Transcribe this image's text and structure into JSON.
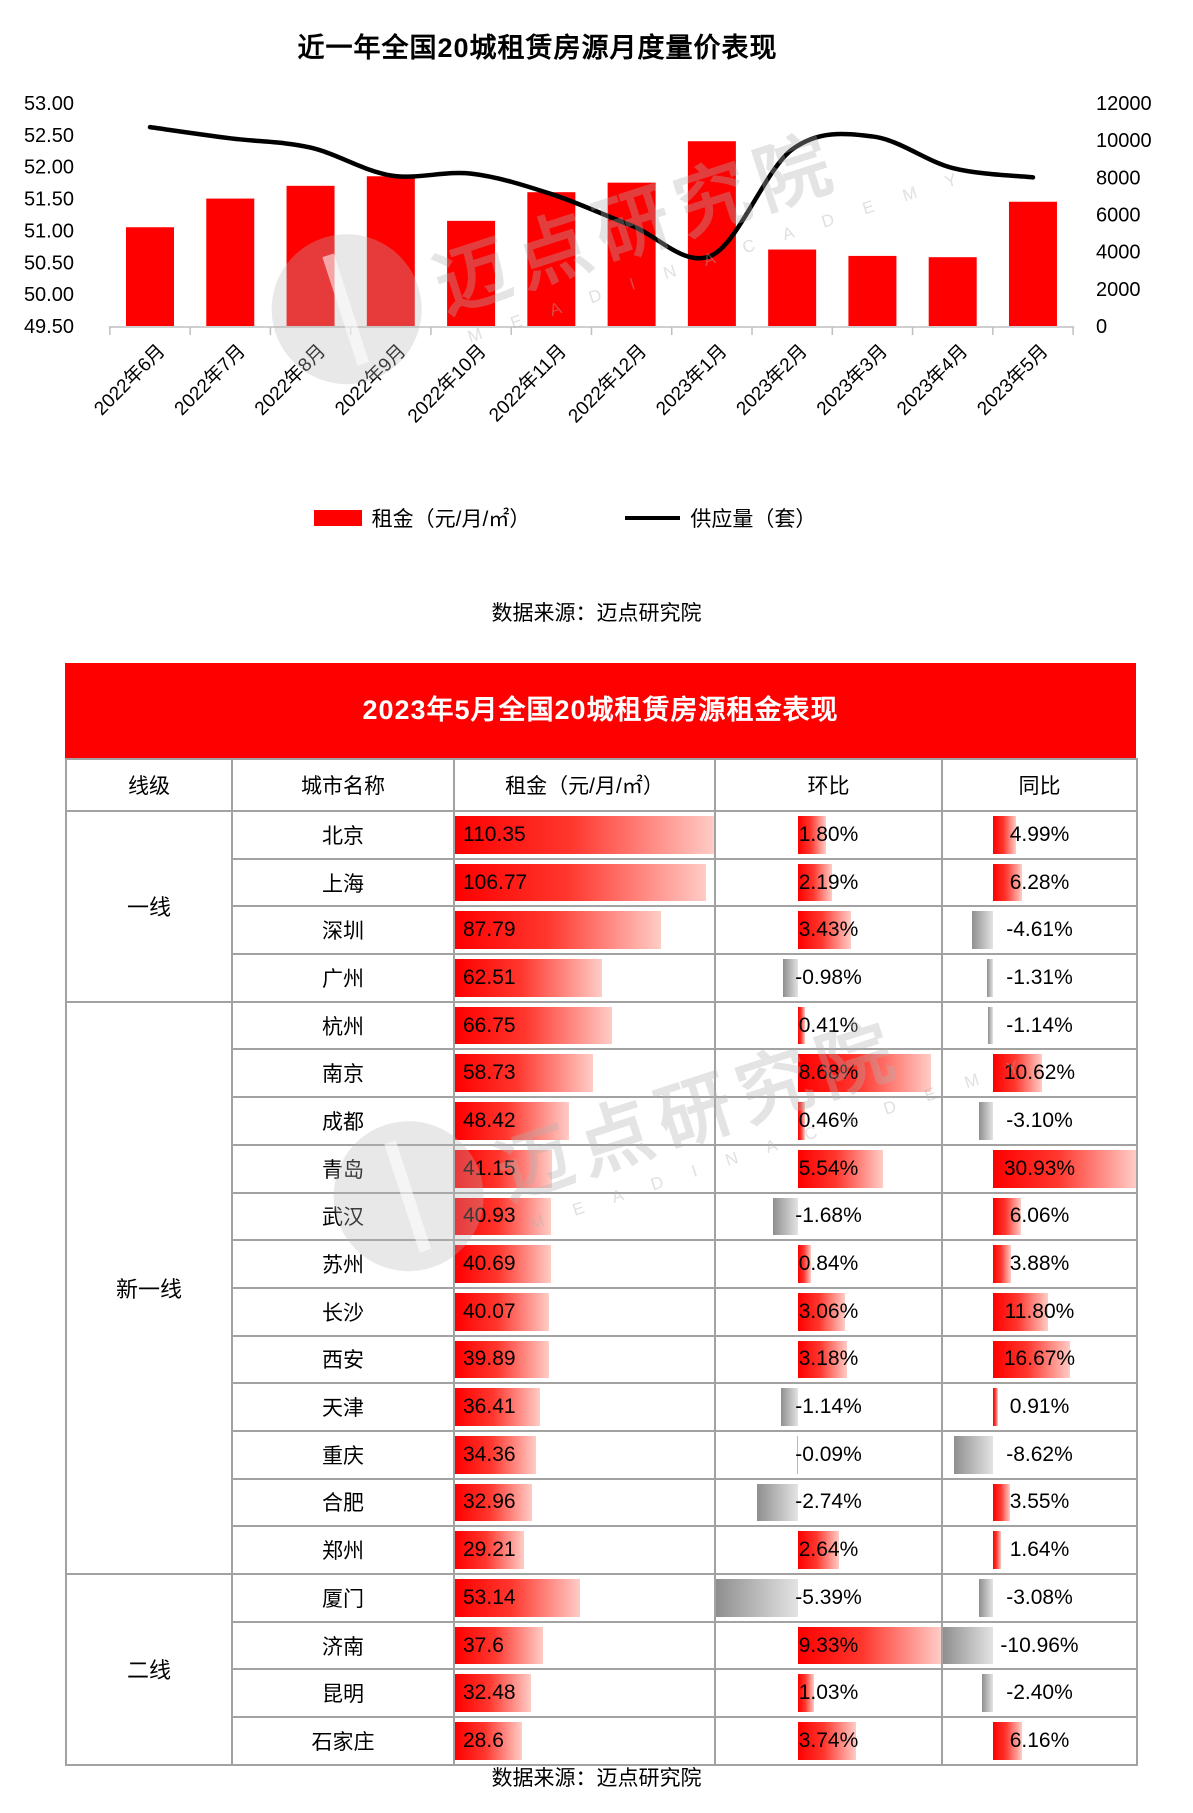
{
  "chart": {
    "title": "近一年全国20城租赁房源月度量价表现",
    "legend": [
      {
        "label": "租金（元/月/㎡）",
        "type": "bar",
        "color": "#fe0000"
      },
      {
        "label": "供应量（套）",
        "type": "line",
        "color": "#000000"
      }
    ],
    "source_note": "数据来源：迈点研究院"
  },
  "chart_data": {
    "type": "bar+line",
    "title": "近一年全国20城租赁房源月度量价表现",
    "categories": [
      "2022年6月",
      "2022年7月",
      "2022年8月",
      "2022年9月",
      "2022年10月",
      "2022年11月",
      "2022年12月",
      "2023年1月",
      "2023年2月",
      "2023年3月",
      "2023年4月",
      "2023年5月"
    ],
    "series": [
      {
        "name": "租金（元/月/㎡）",
        "type": "bar",
        "axis": "left",
        "color": "#fe0000",
        "values": [
          51.05,
          51.5,
          51.7,
          51.85,
          51.15,
          51.6,
          51.75,
          52.4,
          50.7,
          50.6,
          50.58,
          51.45
        ]
      },
      {
        "name": "供应量（套）",
        "type": "line",
        "axis": "right",
        "color": "#000000",
        "values": [
          10700,
          10100,
          9600,
          8100,
          8200,
          7100,
          5400,
          3800,
          9500,
          10200,
          8500,
          8000
        ]
      }
    ],
    "left_axis": {
      "ticks": [
        "53.00",
        "52.50",
        "52.00",
        "51.50",
        "51.00",
        "50.50",
        "50.00",
        "49.50"
      ],
      "min": 49.5,
      "max": 53.0
    },
    "right_axis": {
      "ticks": [
        "12000",
        "10000",
        "8000",
        "6000",
        "4000",
        "2000",
        "0"
      ],
      "min": 0,
      "max": 12000
    },
    "grid": false,
    "legend_position": "bottom"
  },
  "table": {
    "title": "2023年5月全国20城租赁房源租金表现",
    "headers": [
      "线级",
      "城市名称",
      "租金（元/月/㎡）",
      "环比",
      "同比"
    ],
    "tiers": [
      {
        "name": "一线",
        "rows": [
          [
            "北京",
            "110.35",
            "1.80%",
            "4.99%"
          ],
          [
            "上海",
            "106.77",
            "2.19%",
            "6.28%"
          ],
          [
            "深圳",
            "87.79",
            "3.43%",
            "-4.61%"
          ],
          [
            "广州",
            "62.51",
            "-0.98%",
            "-1.31%"
          ]
        ]
      },
      {
        "name": "新一线",
        "rows": [
          [
            "杭州",
            "66.75",
            "0.41%",
            "-1.14%"
          ],
          [
            "南京",
            "58.73",
            "8.68%",
            "10.62%"
          ],
          [
            "成都",
            "48.42",
            "0.46%",
            "-3.10%"
          ],
          [
            "青岛",
            "41.15",
            "5.54%",
            "30.93%"
          ],
          [
            "武汉",
            "40.93",
            "-1.68%",
            "6.06%"
          ],
          [
            "苏州",
            "40.69",
            "0.84%",
            "3.88%"
          ],
          [
            "长沙",
            "40.07",
            "3.06%",
            "11.80%"
          ],
          [
            "西安",
            "39.89",
            "3.18%",
            "16.67%"
          ],
          [
            "天津",
            "36.41",
            "-1.14%",
            "0.91%"
          ],
          [
            "重庆",
            "34.36",
            "-0.09%",
            "-8.62%"
          ],
          [
            "合肥",
            "32.96",
            "-2.74%",
            "3.55%"
          ],
          [
            "郑州",
            "29.21",
            "2.64%",
            "1.64%"
          ]
        ]
      },
      {
        "name": "二线",
        "rows": [
          [
            "厦门",
            "53.14",
            "-5.39%",
            "-3.08%"
          ],
          [
            "济南",
            "37.6",
            "9.33%",
            "-10.96%"
          ],
          [
            "昆明",
            "32.48",
            "1.03%",
            "-2.40%"
          ],
          [
            "石家庄",
            "28.6",
            "3.74%",
            "6.16%"
          ]
        ]
      }
    ],
    "max_rent": 110.35,
    "mom_axis": {
      "max_pos": 9.33,
      "max_neg": 5.39
    },
    "yoy_axis": {
      "max_pos": 30.93,
      "max_neg": 10.96
    },
    "colors": {
      "positive_bar": "#fd0000",
      "negative_bar": "#8f8f8f",
      "header_bg": "#fe0000",
      "border": "#a2a2a2"
    },
    "source_note": "数据来源：迈点研究院"
  },
  "watermark": {
    "text": "迈点研究院",
    "subtext": "M E A D I N   A C A D E M Y"
  }
}
